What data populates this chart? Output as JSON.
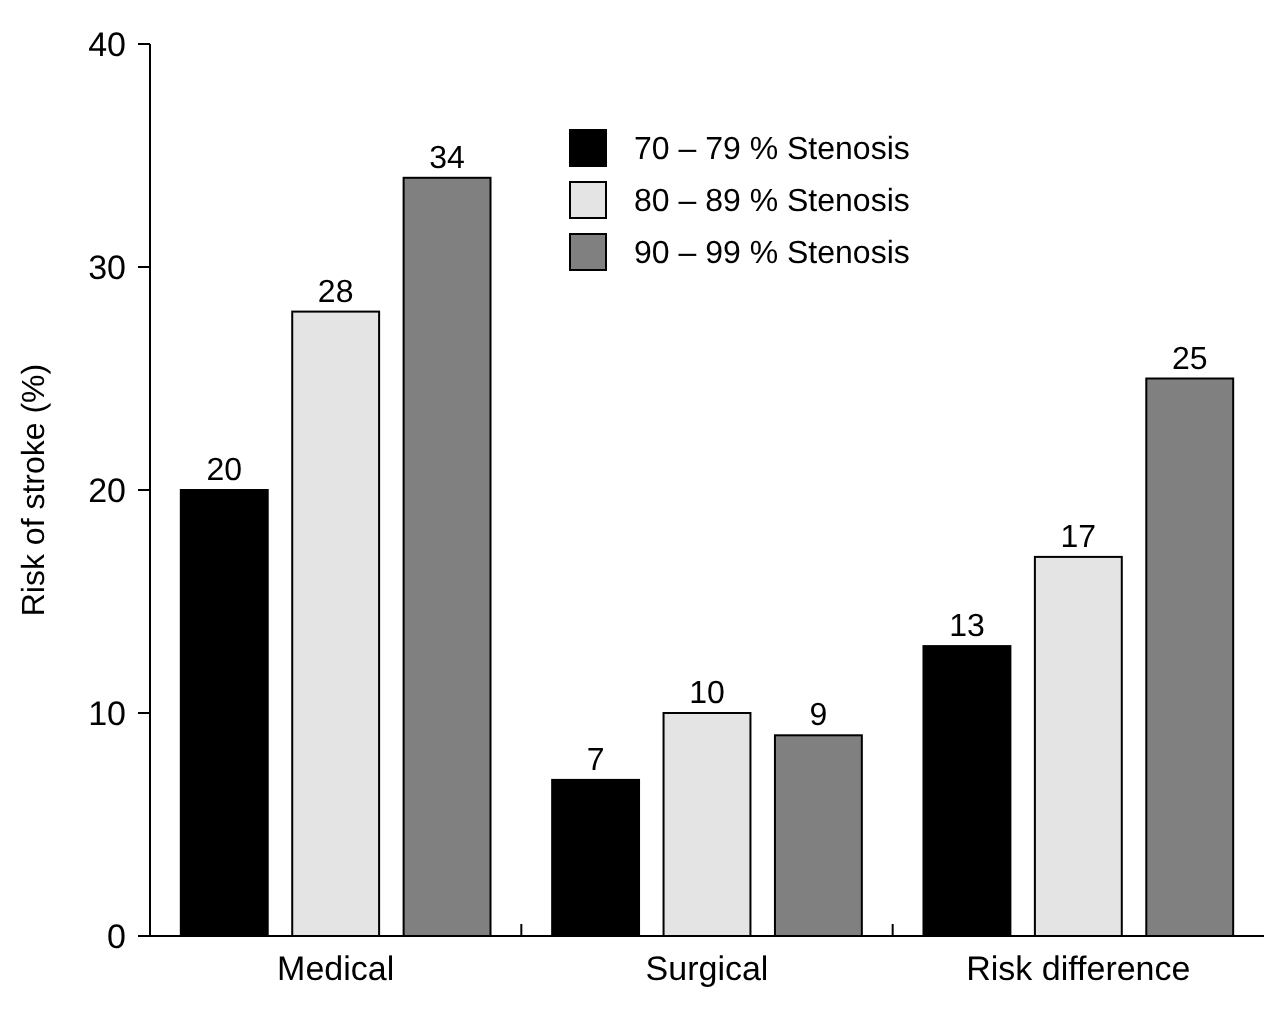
{
  "chart_data": {
    "type": "bar",
    "ylabel": "Risk of stroke (%)",
    "categories": [
      "Medical",
      "Surgical",
      "Risk difference"
    ],
    "series": [
      {
        "name": "70 – 79 % Stenosis",
        "color": "#000000",
        "values": [
          20,
          7,
          13
        ]
      },
      {
        "name": "80 – 89 % Stenosis",
        "color": "#e4e4e4",
        "values": [
          28,
          10,
          17
        ]
      },
      {
        "name": "90 – 99 % Stenosis",
        "color": "#808080",
        "values": [
          34,
          9,
          25
        ]
      }
    ],
    "ylim": [
      0,
      40
    ],
    "yticks": [
      0,
      10,
      20,
      30,
      40
    ],
    "data_labels": true,
    "legend": "top right",
    "grid": false
  }
}
